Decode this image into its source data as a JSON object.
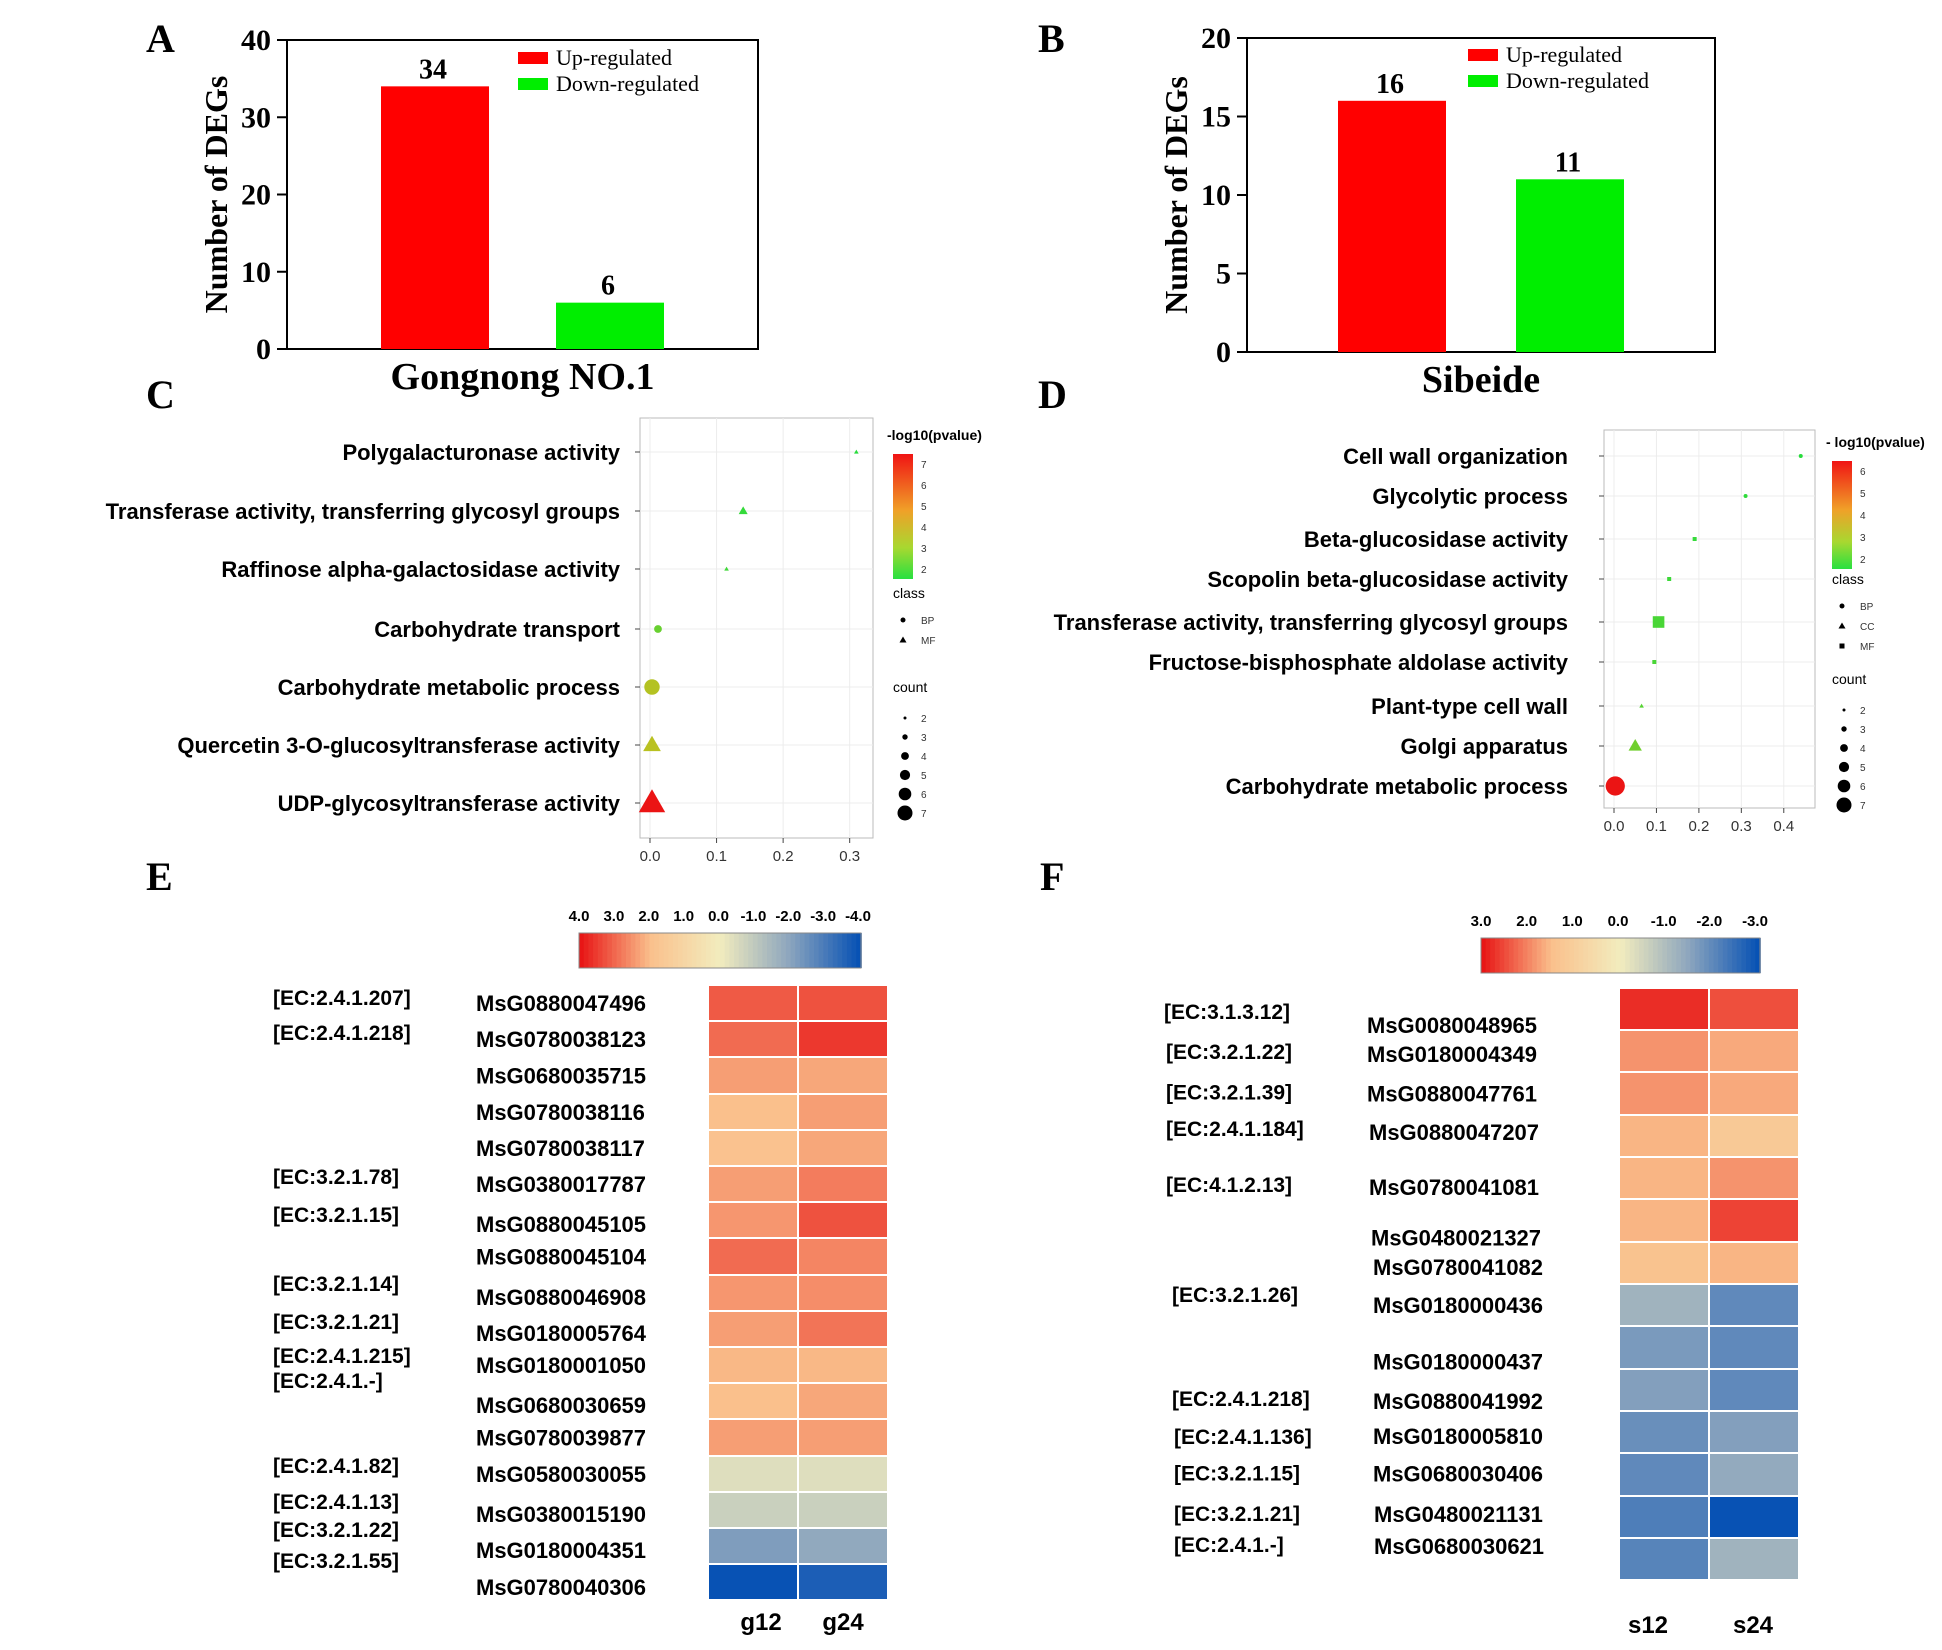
{
  "chart_data": [
    {
      "panel": "A",
      "type": "bar",
      "categories": [
        "Up-regulated",
        "Down-regulated"
      ],
      "values": [
        34,
        6
      ],
      "data_labels": [
        "34",
        "6"
      ],
      "colors": [
        "#ff0000",
        "#00ee00"
      ],
      "xlabel": "Gongnong NO.1",
      "ylabel": "Number of DEGs",
      "ylim": [
        0,
        40
      ],
      "yticks": [
        "0",
        "10",
        "20",
        "30",
        "40"
      ],
      "legend": [
        "Up-regulated",
        "Down-regulated"
      ],
      "legend_position": "top-right"
    },
    {
      "panel": "B",
      "type": "bar",
      "categories": [
        "Up-regulated",
        "Down-regulated"
      ],
      "values": [
        16,
        11
      ],
      "data_labels": [
        "16",
        "11"
      ],
      "colors": [
        "#ff0000",
        "#00ee00"
      ],
      "xlabel": "Sibeide",
      "ylabel": "Number of DEGs",
      "ylim": [
        0,
        20
      ],
      "yticks": [
        "0",
        "5",
        "10",
        "15",
        "20"
      ],
      "legend": [
        "Up-regulated",
        "Down-regulated"
      ],
      "legend_position": "top-right"
    },
    {
      "panel": "C",
      "type": "scatter",
      "xlim": [
        0,
        0.32
      ],
      "xticks": [
        "0.0",
        "0.1",
        "0.2",
        "0.3"
      ],
      "terms": [
        {
          "label": "Polygalacturonase activity",
          "x": 0.31,
          "class": "MF",
          "count": 2,
          "neglog10p": 1.5
        },
        {
          "label": "Transferase activity, transferring glycosyl groups",
          "x": 0.14,
          "class": "MF",
          "count": 3,
          "neglog10p": 1.7
        },
        {
          "label": "Raffinose alpha-galactosidase activity",
          "x": 0.115,
          "class": "MF",
          "count": 2,
          "neglog10p": 1.9
        },
        {
          "label": "Carbohydrate transport",
          "x": 0.012,
          "class": "BP",
          "count": 3,
          "neglog10p": 2.6
        },
        {
          "label": "Carbohydrate metabolic process",
          "x": 0.003,
          "class": "BP",
          "count": 5,
          "neglog10p": 3.9
        },
        {
          "label": "Quercetin 3-O-glucosyltransferase activity",
          "x": 0.003,
          "class": "MF",
          "count": 5,
          "neglog10p": 4.0
        },
        {
          "label": "UDP-glycosyltransferase activity",
          "x": 0.003,
          "class": "MF",
          "count": 7,
          "neglog10p": 7
        }
      ],
      "colorbar_title": "-log10(pvalue)",
      "colorbar_ticks": [
        "7",
        "6",
        "5",
        "4",
        "3",
        "2"
      ],
      "class_title": "class",
      "class_entries": [
        {
          "label": "BP",
          "shape": "circle"
        },
        {
          "label": "MF",
          "shape": "triangle"
        }
      ],
      "count_title": "count",
      "count_entries": [
        "2",
        "3",
        "4",
        "5",
        "6",
        "7"
      ]
    },
    {
      "panel": "D",
      "type": "scatter",
      "xlim": [
        0,
        0.45
      ],
      "xticks": [
        "0.0",
        "0.1",
        "0.2",
        "0.3",
        "0.4"
      ],
      "terms": [
        {
          "label": "Cell wall organization",
          "x": 0.44,
          "class": "BP",
          "count": 2,
          "neglog10p": 1.5
        },
        {
          "label": "Glycolytic process",
          "x": 0.31,
          "class": "BP",
          "count": 2,
          "neglog10p": 1.6
        },
        {
          "label": "Beta-glucosidase activity",
          "x": 0.19,
          "class": "MF",
          "count": 2,
          "neglog10p": 1.7
        },
        {
          "label": "Scopolin beta-glucosidase activity",
          "x": 0.13,
          "class": "MF",
          "count": 2,
          "neglog10p": 1.8
        },
        {
          "label": "Transferase activity, transferring glycosyl groups",
          "x": 0.105,
          "class": "MF",
          "count": 4,
          "neglog10p": 2.0
        },
        {
          "label": "Fructose-bisphosphate aldolase activity",
          "x": 0.095,
          "class": "MF",
          "count": 2,
          "neglog10p": 2.0
        },
        {
          "label": "Plant-type cell wall",
          "x": 0.065,
          "class": "CC",
          "count": 2,
          "neglog10p": 2.2
        },
        {
          "label": "Golgi apparatus",
          "x": 0.05,
          "class": "CC",
          "count": 4,
          "neglog10p": 2.6
        },
        {
          "label": "Carbohydrate metabolic process",
          "x": 0.003,
          "class": "BP",
          "count": 6,
          "neglog10p": 6.4
        }
      ],
      "colorbar_title": "- log10(pvalue)",
      "colorbar_ticks": [
        "6",
        "5",
        "4",
        "3",
        "2"
      ],
      "class_title": "class",
      "class_entries": [
        {
          "label": "BP",
          "shape": "circle"
        },
        {
          "label": "CC",
          "shape": "triangle"
        },
        {
          "label": "MF",
          "shape": "square"
        }
      ],
      "count_title": "count",
      "count_entries": [
        "2",
        "3",
        "4",
        "5",
        "6",
        "7"
      ]
    },
    {
      "panel": "E",
      "type": "heatmap",
      "columns": [
        "g12",
        "g24"
      ],
      "scale_labels": [
        "4.0",
        "3.0",
        "2.0",
        "1.0",
        "0.0",
        "-1.0",
        "-2.0",
        "-3.0",
        "-4.0"
      ],
      "scale_range": [
        4,
        -4
      ],
      "rows": [
        {
          "gene": "MsG0880047496",
          "ec": "[EC:2.4.1.207]",
          "values": [
            3.2,
            3.3
          ]
        },
        {
          "gene": "MsG0780038123",
          "ec": "[EC:2.4.1.218]",
          "values": [
            3.0,
            3.6
          ]
        },
        {
          "gene": "MsG0680035715",
          "ec": "",
          "values": [
            2.4,
            2.3
          ]
        },
        {
          "gene": "MsG0780038116",
          "ec": "",
          "values": [
            2.0,
            2.4
          ]
        },
        {
          "gene": "MsG0780038117",
          "ec": "",
          "values": [
            1.9,
            2.3
          ]
        },
        {
          "gene": "MsG0380017787",
          "ec": "[EC:3.2.1.78]",
          "values": [
            2.4,
            2.8
          ]
        },
        {
          "gene": "MsG0880045105",
          "ec": "[EC:3.2.1.15]",
          "values": [
            2.5,
            3.3
          ]
        },
        {
          "gene": "MsG0880045104",
          "ec": "",
          "values": [
            3.0,
            2.7
          ]
        },
        {
          "gene": "MsG0880046908",
          "ec": "[EC:3.2.1.14]",
          "values": [
            2.5,
            2.6
          ]
        },
        {
          "gene": "MsG0180005764",
          "ec": "[EC:3.2.1.21]",
          "values": [
            2.4,
            2.9
          ]
        },
        {
          "gene": "MsG0180001050",
          "ec": "[EC:2.4.1.215]",
          "values": [
            2.1,
            2.1
          ]
        },
        {
          "gene": "MsG0680030659",
          "ec": "[EC:2.4.1.-]",
          "values": [
            2.0,
            2.3
          ]
        },
        {
          "gene": "MsG0780039877",
          "ec": "",
          "values": [
            2.4,
            2.4
          ]
        },
        {
          "gene": "MsG0580030055",
          "ec": "[EC:2.4.1.82]",
          "values": [
            -0.4,
            -0.4
          ]
        },
        {
          "gene": "MsG0380015190",
          "ec": "[EC:2.4.1.13]",
          "values": [
            -0.8,
            -0.8
          ]
        },
        {
          "gene": "MsG0180004351",
          "ec": "[EC:3.2.1.22]",
          "values": [
            -2.2,
            -1.9
          ]
        },
        {
          "gene": "MsG0780040306",
          "ec": "[EC:3.2.1.55]",
          "values": [
            -4.0,
            -3.7
          ]
        }
      ]
    },
    {
      "panel": "F",
      "type": "heatmap",
      "columns": [
        "s12",
        "s24"
      ],
      "scale_labels": [
        "3.0",
        "2.0",
        "1.0",
        "0.0",
        "-1.0",
        "-2.0",
        "-3.0"
      ],
      "scale_range": [
        3,
        -3
      ],
      "rows": [
        {
          "gene": "MsG0080048965",
          "ec": "[EC:3.1.3.12]",
          "values": [
            2.8,
            2.5
          ]
        },
        {
          "gene": "MsG0180004349",
          "ec": "[EC:3.2.1.22]",
          "values": [
            1.9,
            1.7
          ]
        },
        {
          "gene": "MsG0880047761",
          "ec": "[EC:3.2.1.39]",
          "values": [
            1.9,
            1.7
          ]
        },
        {
          "gene": "MsG0880047207",
          "ec": "[EC:2.4.1.184]",
          "values": [
            1.6,
            1.2
          ]
        },
        {
          "gene": "MsG0780041081",
          "ec": "[EC:4.1.2.13]",
          "values": [
            1.6,
            1.9
          ]
        },
        {
          "gene": "MsG0480021327",
          "ec": "",
          "values": [
            1.6,
            2.6
          ]
        },
        {
          "gene": "MsG0780041082",
          "ec": "",
          "values": [
            1.4,
            1.6
          ]
        },
        {
          "gene": "MsG0180000436",
          "ec": "[EC:3.2.1.26]",
          "values": [
            -1.2,
            -2.0
          ]
        },
        {
          "gene": "MsG0180000437",
          "ec": "",
          "values": [
            -1.7,
            -2.0
          ]
        },
        {
          "gene": "MsG0880041992",
          "ec": "[EC:2.4.1.218]",
          "values": [
            -1.6,
            -2.0
          ]
        },
        {
          "gene": "MsG0180005810",
          "ec": "[EC:2.4.1.136]",
          "values": [
            -1.9,
            -1.6
          ]
        },
        {
          "gene": "MsG0680030406",
          "ec": "[EC:3.2.1.15]",
          "values": [
            -2.0,
            -1.4
          ]
        },
        {
          "gene": "MsG0480021131",
          "ec": "[EC:3.2.1.21]",
          "values": [
            -2.2,
            -3.0
          ]
        },
        {
          "gene": "MsG0680030621",
          "ec": "[EC:2.4.1.-]",
          "values": [
            -2.1,
            -1.2
          ]
        }
      ]
    }
  ]
}
